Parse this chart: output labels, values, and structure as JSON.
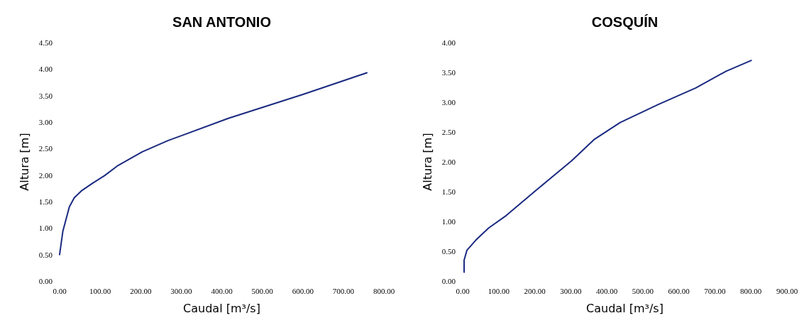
{
  "chart_data": [
    {
      "type": "line",
      "title": "SAN ANTONIO",
      "xlabel": "Caudal [m³/s]",
      "ylabel": "Altura [m]",
      "series": [
        {
          "color": "#1a2a80",
          "x": [
            0,
            8,
            24,
            36,
            55,
            80,
            111,
            142,
            204,
            267,
            416,
            603,
            758
          ],
          "values": [
            0.5,
            0.94,
            1.4,
            1.57,
            1.71,
            1.84,
            1.99,
            2.17,
            2.44,
            2.65,
            3.07,
            3.53,
            3.93
          ]
        }
      ],
      "xlim": [
        0,
        800
      ],
      "ylim": [
        0,
        4.5
      ],
      "xticks": [
        {
          "value": 0,
          "label": "0.00"
        },
        {
          "value": 100,
          "label": "100.00"
        },
        {
          "value": 200,
          "label": "200.00"
        },
        {
          "value": 300,
          "label": "300.00"
        },
        {
          "value": 400,
          "label": "400.00"
        },
        {
          "value": 500,
          "label": "500.00"
        },
        {
          "value": 600,
          "label": "600.00"
        },
        {
          "value": 700,
          "label": "700.00"
        },
        {
          "value": 800,
          "label": "800.00"
        }
      ],
      "yticks": [
        {
          "value": 0,
          "label": "0.00"
        },
        {
          "value": 0.5,
          "label": "0.50"
        },
        {
          "value": 1,
          "label": "1.00"
        },
        {
          "value": 1.5,
          "label": "1.50"
        },
        {
          "value": 2,
          "label": "2.00"
        },
        {
          "value": 2.5,
          "label": "2.50"
        },
        {
          "value": 3,
          "label": "3.00"
        },
        {
          "value": 3.5,
          "label": "3.50"
        },
        {
          "value": 4,
          "label": "4.00"
        },
        {
          "value": 4.5,
          "label": "4.50"
        }
      ],
      "marker": "none",
      "line_style": "solid"
    },
    {
      "type": "line",
      "title": "COSQUÍN",
      "xlabel": "Caudal [m³/s]",
      "ylabel": "Altura [m]",
      "series": [
        {
          "color": "#1a2a80",
          "x": [
            4,
            4,
            12,
            37,
            72,
            121,
            205,
            303,
            366,
            437,
            542,
            647,
            731,
            801
          ],
          "values": [
            0.15,
            0.35,
            0.52,
            0.69,
            0.89,
            1.1,
            1.53,
            2.02,
            2.38,
            2.66,
            2.96,
            3.24,
            3.52,
            3.7
          ]
        }
      ],
      "xlim": [
        0,
        900
      ],
      "ylim": [
        0,
        4
      ],
      "xticks": [
        {
          "value": 0,
          "label": "0.00"
        },
        {
          "value": 100,
          "label": "100.00"
        },
        {
          "value": 200,
          "label": "200.00"
        },
        {
          "value": 300,
          "label": "300.00"
        },
        {
          "value": 400,
          "label": "400.00"
        },
        {
          "value": 500,
          "label": "500.00"
        },
        {
          "value": 600,
          "label": "600.00"
        },
        {
          "value": 700,
          "label": "700.00"
        },
        {
          "value": 800,
          "label": "800.00"
        },
        {
          "value": 900,
          "label": "900.00"
        }
      ],
      "yticks": [
        {
          "value": 0,
          "label": "0.00"
        },
        {
          "value": 0.5,
          "label": "0.50"
        },
        {
          "value": 1,
          "label": "1.00"
        },
        {
          "value": 1.5,
          "label": "1.50"
        },
        {
          "value": 2,
          "label": "2.00"
        },
        {
          "value": 2.5,
          "label": "2.50"
        },
        {
          "value": 3,
          "label": "3.00"
        },
        {
          "value": 3.5,
          "label": "3.50"
        },
        {
          "value": 4,
          "label": "4.00"
        }
      ],
      "marker": "none",
      "line_style": "solid"
    }
  ]
}
